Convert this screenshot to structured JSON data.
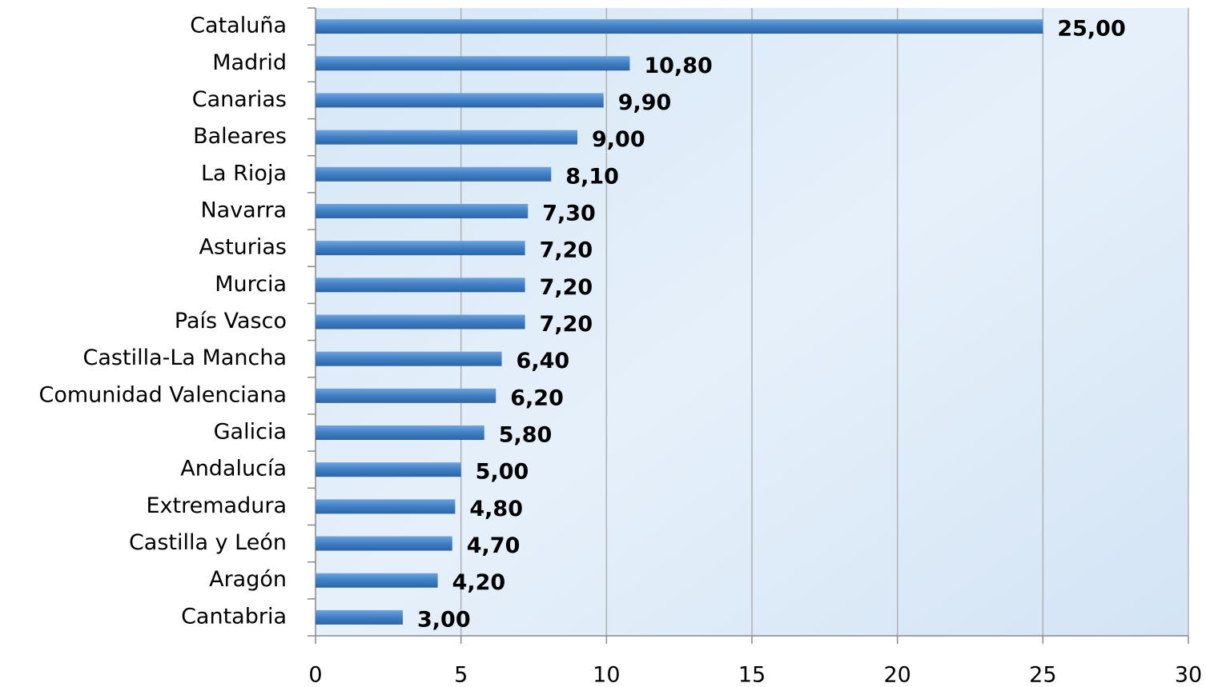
{
  "chart_data": {
    "type": "bar",
    "orientation": "horizontal",
    "categories": [
      "Cataluña",
      "Madrid",
      "Canarias",
      "Baleares",
      "La Rioja",
      "Navarra",
      "Asturias",
      "Murcia",
      "País Vasco",
      "Castilla-La Mancha",
      "Comunidad Valenciana",
      "Galicia",
      "Andalucía",
      "Extremadura",
      "Castilla y León",
      "Aragón",
      "Cantabria"
    ],
    "values": [
      25,
      10.8,
      9.9,
      9,
      8.1,
      7.3,
      7.2,
      7.2,
      7.2,
      6.4,
      6.2,
      5.8,
      5,
      4.8,
      4.7,
      4.2,
      3
    ],
    "value_labels": [
      "25,00",
      "10,80",
      "9,90",
      "9,00",
      "8,10",
      "7,30",
      "7,20",
      "7,20",
      "7,20",
      "6,40",
      "6,20",
      "5,80",
      "5,00",
      "4,80",
      "4,70",
      "4,20",
      "3,00"
    ],
    "color": "#3f7fc4",
    "xlim": [
      0,
      30
    ],
    "xticks": [
      0,
      5,
      10,
      15,
      20,
      25,
      30
    ],
    "grid": true
  }
}
